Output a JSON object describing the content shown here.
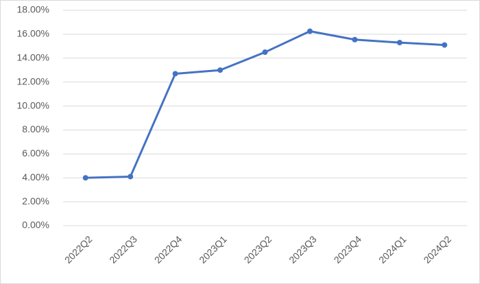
{
  "chart_data": {
    "type": "line",
    "categories": [
      "2022Q2",
      "2022Q3",
      "2022Q4",
      "2023Q1",
      "2023Q2",
      "2023Q3",
      "2023Q4",
      "2024Q1",
      "2024Q2"
    ],
    "values": [
      4.0,
      4.1,
      12.7,
      13.0,
      14.5,
      16.25,
      15.55,
      15.3,
      15.1
    ],
    "color": "#4472c4",
    "ylim": [
      0,
      18
    ],
    "yticks": [
      {
        "value": 0,
        "label": "0.00%"
      },
      {
        "value": 2,
        "label": "2.00%"
      },
      {
        "value": 4,
        "label": "4.00%"
      },
      {
        "value": 6,
        "label": "6.00%"
      },
      {
        "value": 8,
        "label": "8.00%"
      },
      {
        "value": 10,
        "label": "10.00%"
      },
      {
        "value": 12,
        "label": "12.00%"
      },
      {
        "value": 14,
        "label": "14.00%"
      },
      {
        "value": 16,
        "label": "16.00%"
      },
      {
        "value": 18,
        "label": "18.00%"
      }
    ],
    "grid": true
  }
}
